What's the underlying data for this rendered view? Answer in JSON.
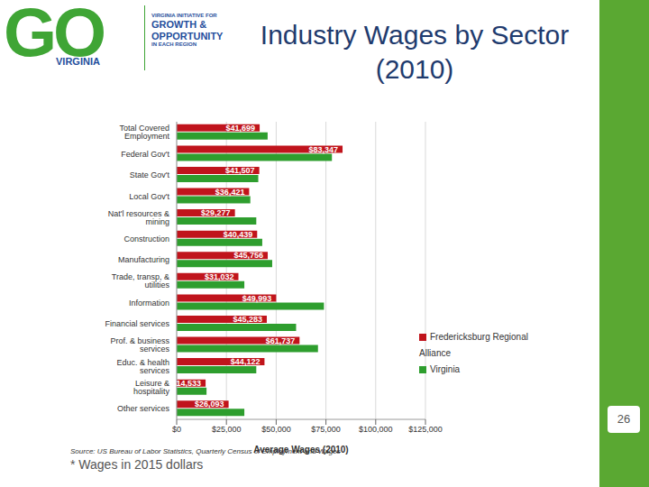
{
  "slide": {
    "title_lines": [
      "Industry Wages by Sector",
      "(2010)"
    ],
    "logo": {
      "mark": "GO",
      "word": "VIRGINIA",
      "lines": [
        "VIRGINIA INITIATIVE FOR",
        "GROWTH &",
        "OPPORTUNITY",
        "IN EACH REGION"
      ]
    },
    "source": "Source: US Bureau of Labor Statistics, Quarterly Census of Employment and Wages",
    "footnote": "* Wages in 2015 dollars",
    "page_number": "26"
  },
  "chart_data": {
    "type": "bar",
    "orientation": "horizontal",
    "x_label": "Average Wages (2010)",
    "categories": [
      "Total Covered Employment",
      "Federal Gov't",
      "State Gov't",
      "Local Gov't",
      "Nat'l resources & mining",
      "Construction",
      "Manufacturing",
      "Trade, transp, & utilities",
      "Information",
      "Financial services",
      "Prof. & business services",
      "Educ. & health services",
      "Leisure & hospitality",
      "Other services"
    ],
    "series": [
      {
        "name": "Fredericksburg Regional Alliance",
        "color": "#c0141c",
        "data_labels": true,
        "values": [
          41699,
          83347,
          41507,
          36421,
          29277,
          40439,
          45756,
          31032,
          49993,
          45283,
          61737,
          44122,
          14533,
          26093
        ],
        "value_labels": [
          "$41,699",
          "$83,347",
          "$41,507",
          "$36,421",
          "$29,277",
          "$40,439",
          "$45,756",
          "$31,032",
          "$49,993",
          "$45,283",
          "$61,737",
          "$44,122",
          "$14,533",
          "$26,093"
        ]
      },
      {
        "name": "Virginia",
        "color": "#2e9e2e",
        "values": [
          45700,
          78000,
          41000,
          37000,
          40000,
          43000,
          48000,
          34000,
          74000,
          60000,
          71000,
          40000,
          15000,
          34000
        ]
      }
    ],
    "xlim": [
      0,
      125000
    ],
    "xticks": [
      {
        "value": 0,
        "label": "$0"
      },
      {
        "value": 25000,
        "label": "$25,000"
      },
      {
        "value": 50000,
        "label": "$50,000"
      },
      {
        "value": 75000,
        "label": "$75,000"
      },
      {
        "value": 100000,
        "label": "$100,000"
      },
      {
        "value": 125000,
        "label": "$125,000"
      }
    ],
    "grid": true,
    "legend": "right"
  }
}
